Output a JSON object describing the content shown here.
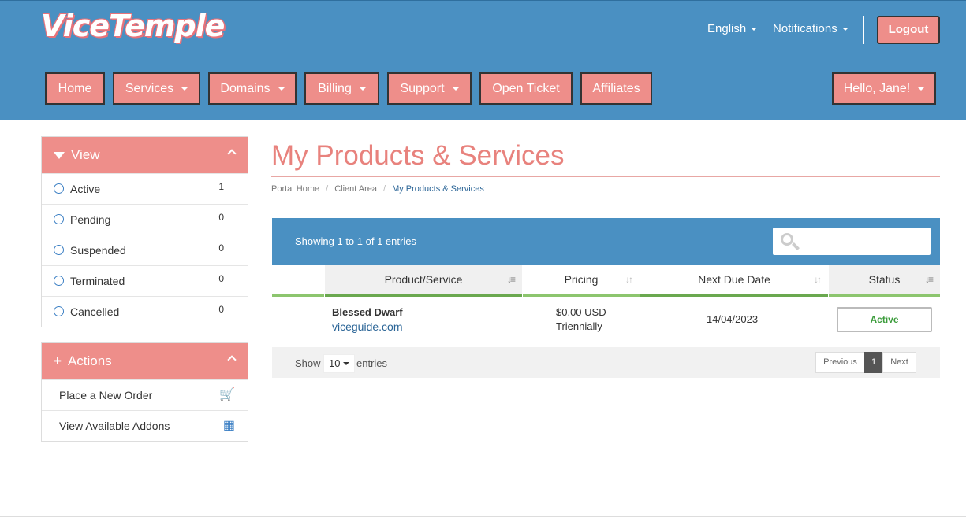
{
  "header": {
    "logo_text": "ViceTemple",
    "language_label": "English",
    "notifications_label": "Notifications",
    "logout_label": "Logout",
    "nav": [
      {
        "label": "Home"
      },
      {
        "label": "Services"
      },
      {
        "label": "Domains"
      },
      {
        "label": "Billing"
      },
      {
        "label": "Support"
      },
      {
        "label": "Open Ticket"
      },
      {
        "label": "Affiliates"
      }
    ],
    "account_label": "Hello, Jane!"
  },
  "sidebar": {
    "view": {
      "title": "View",
      "items": [
        {
          "label": "Active",
          "count": "1"
        },
        {
          "label": "Pending",
          "count": "0"
        },
        {
          "label": "Suspended",
          "count": "0"
        },
        {
          "label": "Terminated",
          "count": "0"
        },
        {
          "label": "Cancelled",
          "count": "0"
        }
      ]
    },
    "actions": {
      "title": "Actions",
      "items": [
        {
          "label": "Place a New Order",
          "icon": "cart-icon"
        },
        {
          "label": "View Available Addons",
          "icon": "cubes-icon"
        }
      ]
    }
  },
  "main": {
    "title": "My Products & Services",
    "breadcrumb": [
      "Portal Home",
      "Client Area",
      "My Products & Services"
    ],
    "table": {
      "showing": "Showing 1 to 1 of 1 entries",
      "columns": [
        "Product/Service",
        "Pricing",
        "Next Due Date",
        "Status"
      ],
      "rows": [
        {
          "product": "Blessed Dwarf",
          "domain": "viceguide.com",
          "price": "$0.00 USD",
          "cycle": "Triennially",
          "due": "14/04/2023",
          "status": "Active"
        }
      ],
      "show_label": "Show",
      "page_size": "10",
      "entries_label": "entries",
      "pagination": {
        "previous": "Previous",
        "current": "1",
        "next": "Next"
      }
    }
  },
  "colors": {
    "header_bg": "#4a90c2",
    "accent": "#ee8e8a",
    "title": "#e8827d",
    "status_active": "#3c9c3c",
    "column_underline": "#8cc56e"
  }
}
